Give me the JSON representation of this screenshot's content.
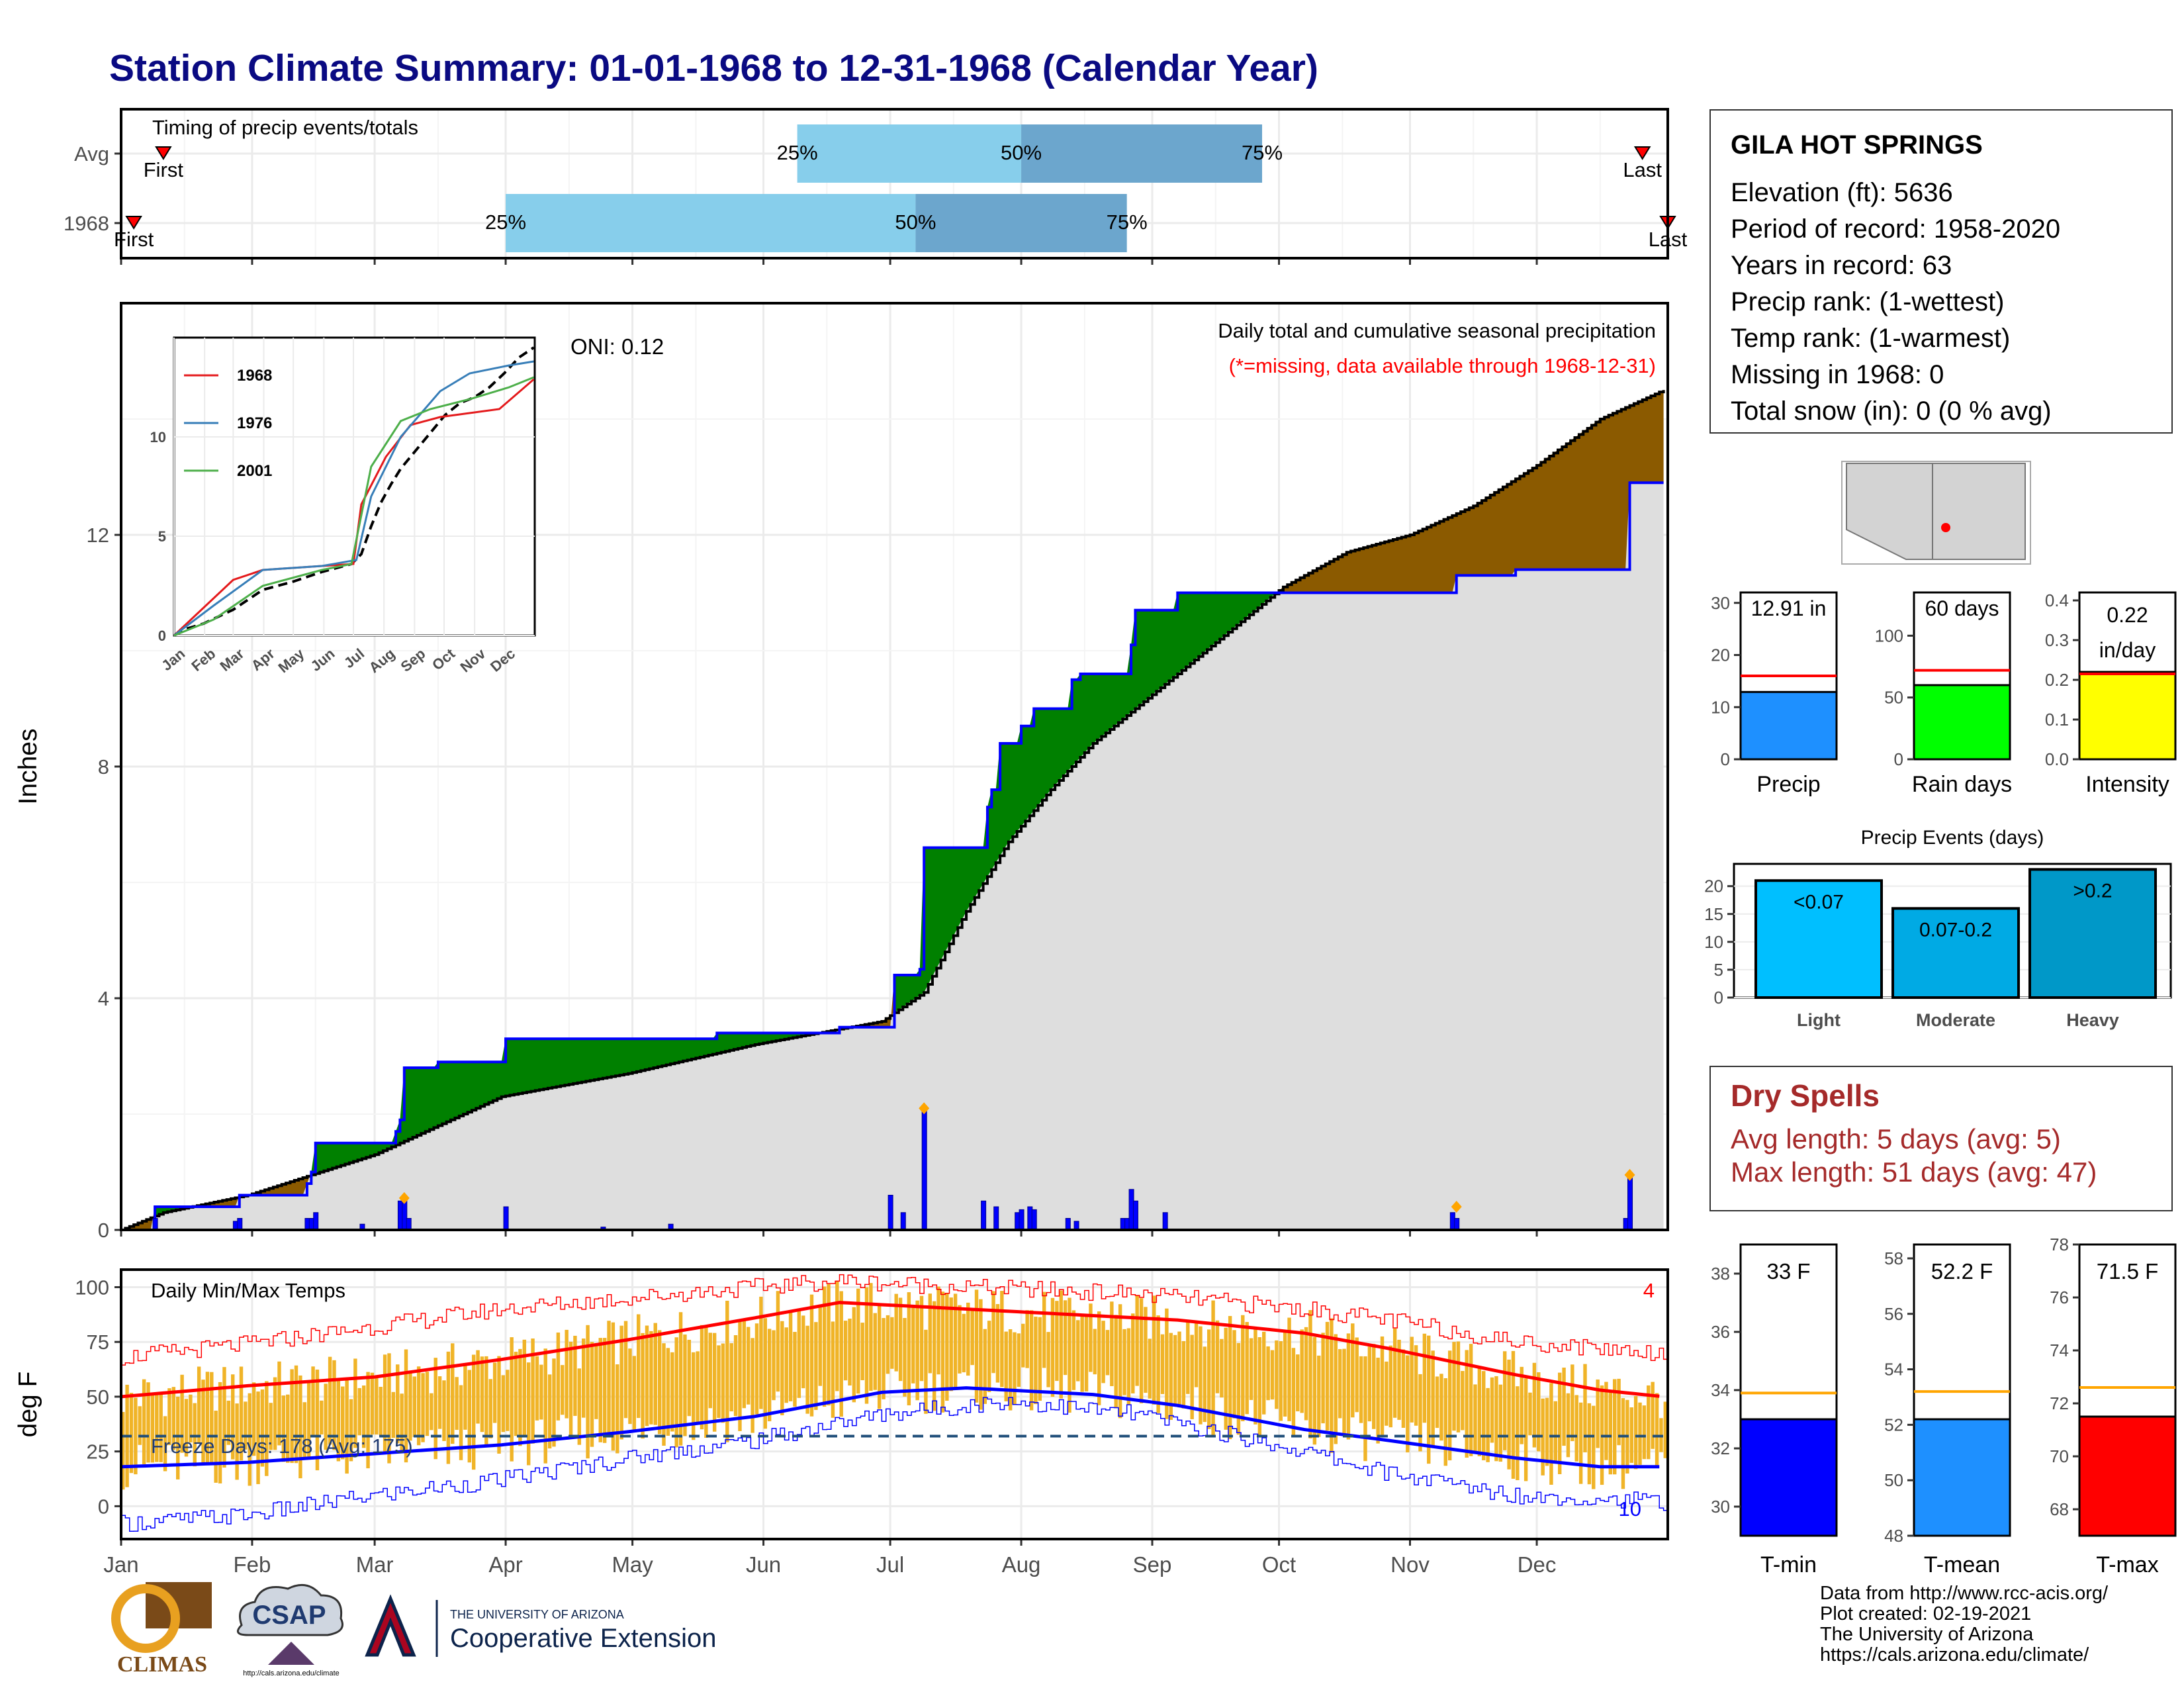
{
  "title": "Station Climate Summary: 01-01-1968 to 12-31-1968 (Calendar Year)",
  "station": {
    "name": "GILA HOT SPRINGS",
    "lines": [
      "Elevation (ft): 5636",
      "Period of record: 1958-2020",
      "Years in record: 63",
      "Precip rank:  (1-wettest)",
      "Temp rank:  (1-warmest)",
      "Missing in 1968: 0",
      "Total snow (in): 0 (0 % avg)"
    ]
  },
  "dry_spells": {
    "title": "Dry Spells",
    "avg": "Avg length: 5 days (avg: 5)",
    "max": "Max length: 51 days (avg: 47)"
  },
  "credits": [
    "Data from http://www.rcc-acis.org/",
    "Plot created: 02-19-2021",
    "The University of Arizona",
    "https://cals.arizona.edu/climate/"
  ],
  "logos": {
    "climas": "CLIMAS",
    "csap": "CSAP",
    "csap_url": "http://cals.arizona.edu/climate",
    "ua_header": "THE UNIVERSITY OF ARIZONA",
    "ua_name": "Cooperative Extension"
  },
  "colors": {
    "title": "#0a0a82",
    "above_avg": "#008000",
    "below_avg": "#8b5a00",
    "cum_line": "#0000ff",
    "bar_q1": "#87ceeb",
    "bar_q2": "#6ca6cd",
    "temp_bar": "#f0b428",
    "tmax": "#ff0000",
    "tmin": "#0000ff"
  },
  "chart_data": [
    {
      "id": "timing",
      "type": "bar",
      "title": "Timing of precip events/totals",
      "categories": [
        "Avg",
        "1968"
      ],
      "x_axis": "day of year",
      "rows": [
        {
          "name": "Avg",
          "first_day": 10,
          "q25_day": 160,
          "q50_day": 213,
          "q75_day": 270,
          "last_day": 360,
          "first_label": "First",
          "last_label": "Last"
        },
        {
          "name": "1968",
          "first_day": 3,
          "q25_day": 91,
          "q50_day": 188,
          "q75_day": 238,
          "last_day": 366,
          "first_label": "First",
          "last_label": "Last"
        }
      ],
      "quartile_labels": [
        "25%",
        "50%",
        "75%"
      ]
    },
    {
      "id": "precip",
      "type": "area",
      "title": "Daily total and cumulative seasonal precipitation",
      "subtitle": "(*=missing, data available through 1968-12-31)",
      "annotation": "ONI: 0.12",
      "ylabel": "Inches",
      "ylim": [
        0,
        16
      ],
      "yticks": [
        0,
        4,
        8,
        12
      ],
      "months": [
        "Jan",
        "Feb",
        "Mar",
        "Apr",
        "May",
        "Jun",
        "Jul",
        "Aug",
        "Sep",
        "Oct",
        "Nov",
        "Dec"
      ],
      "avg_cumulative": [
        [
          0,
          0
        ],
        [
          10,
          0.3
        ],
        [
          30,
          0.6
        ],
        [
          60,
          1.3
        ],
        [
          75,
          1.8
        ],
        [
          90,
          2.3
        ],
        [
          120,
          2.7
        ],
        [
          150,
          3.2
        ],
        [
          180,
          3.6
        ],
        [
          190,
          4.1
        ],
        [
          200,
          5.5
        ],
        [
          210,
          6.7
        ],
        [
          220,
          7.6
        ],
        [
          230,
          8.4
        ],
        [
          245,
          9.3
        ],
        [
          260,
          10.2
        ],
        [
          275,
          11.1
        ],
        [
          290,
          11.7
        ],
        [
          305,
          12.0
        ],
        [
          320,
          12.5
        ],
        [
          335,
          13.2
        ],
        [
          350,
          14.0
        ],
        [
          365,
          14.5
        ]
      ],
      "cumulative_1968": [
        [
          0,
          0
        ],
        [
          8,
          0.4
        ],
        [
          27,
          0.4
        ],
        [
          28,
          0.6
        ],
        [
          43,
          0.6
        ],
        [
          44,
          0.8
        ],
        [
          45,
          1.0
        ],
        [
          46,
          1.5
        ],
        [
          65,
          1.7
        ],
        [
          66,
          1.9
        ],
        [
          67,
          2.8
        ],
        [
          75,
          2.9
        ],
        [
          90,
          2.9
        ],
        [
          91,
          3.3
        ],
        [
          140,
          3.3
        ],
        [
          141,
          3.4
        ],
        [
          170,
          3.5
        ],
        [
          182,
          3.5
        ],
        [
          183,
          4.4
        ],
        [
          189,
          4.5
        ],
        [
          190,
          6.6
        ],
        [
          200,
          6.6
        ],
        [
          205,
          7.3
        ],
        [
          206,
          7.6
        ],
        [
          208,
          8.4
        ],
        [
          213,
          8.7
        ],
        [
          216,
          9.0
        ],
        [
          224,
          9.0
        ],
        [
          225,
          9.5
        ],
        [
          227,
          9.6
        ],
        [
          237,
          9.6
        ],
        [
          239,
          10.1
        ],
        [
          240,
          10.7
        ],
        [
          250,
          11.0
        ],
        [
          290,
          11.0
        ],
        [
          315,
          11.0
        ],
        [
          316,
          11.3
        ],
        [
          330,
          11.4
        ],
        [
          356,
          11.4
        ],
        [
          357,
          12.9
        ],
        [
          365,
          12.9
        ]
      ],
      "daily_1968": [
        [
          8,
          0.2
        ],
        [
          27,
          0.15
        ],
        [
          28,
          0.2
        ],
        [
          44,
          0.2
        ],
        [
          45,
          0.2
        ],
        [
          46,
          0.3
        ],
        [
          57,
          0.1
        ],
        [
          66,
          0.5
        ],
        [
          67,
          0.5
        ],
        [
          68,
          0.2
        ],
        [
          91,
          0.4
        ],
        [
          114,
          0.05
        ],
        [
          130,
          0.1
        ],
        [
          182,
          0.6
        ],
        [
          185,
          0.3
        ],
        [
          190,
          2.1
        ],
        [
          204,
          0.5
        ],
        [
          207,
          0.4
        ],
        [
          212,
          0.3
        ],
        [
          213,
          0.35
        ],
        [
          215,
          0.4
        ],
        [
          216,
          0.35
        ],
        [
          224,
          0.2
        ],
        [
          226,
          0.15
        ],
        [
          237,
          0.2
        ],
        [
          238,
          0.2
        ],
        [
          239,
          0.7
        ],
        [
          240,
          0.5
        ],
        [
          247,
          0.3
        ],
        [
          315,
          0.3
        ],
        [
          316,
          0.2
        ],
        [
          356,
          0.2
        ],
        [
          357,
          0.9
        ]
      ],
      "daily_max_markers": [
        [
          67,
          0.55
        ],
        [
          190,
          2.1
        ],
        [
          316,
          0.4
        ],
        [
          357,
          0.95
        ]
      ]
    },
    {
      "id": "inset",
      "type": "line",
      "series": [
        {
          "name": "1968",
          "color": "#e41a1c",
          "values": [
            [
              0,
              0
            ],
            [
              60,
              2.8
            ],
            [
              90,
              3.3
            ],
            [
              150,
              3.5
            ],
            [
              182,
              3.6
            ],
            [
              190,
              6.6
            ],
            [
              215,
              9.0
            ],
            [
              240,
              10.6
            ],
            [
              270,
              11.0
            ],
            [
              330,
              11.4
            ],
            [
              365,
              12.9
            ]
          ]
        },
        {
          "name": "1976",
          "color": "#377eb8",
          "values": [
            [
              0,
              0
            ],
            [
              40,
              1.5
            ],
            [
              90,
              3.3
            ],
            [
              150,
              3.5
            ],
            [
              185,
              3.8
            ],
            [
              200,
              7.0
            ],
            [
              230,
              10.0
            ],
            [
              270,
              12.3
            ],
            [
              300,
              13.2
            ],
            [
              340,
              13.6
            ],
            [
              365,
              13.8
            ]
          ]
        },
        {
          "name": "2001",
          "color": "#4daf4a",
          "values": [
            [
              0,
              0
            ],
            [
              40,
              0.8
            ],
            [
              90,
              2.5
            ],
            [
              150,
              3.3
            ],
            [
              180,
              3.6
            ],
            [
              200,
              8.5
            ],
            [
              230,
              10.8
            ],
            [
              260,
              11.4
            ],
            [
              300,
              11.9
            ],
            [
              340,
              12.5
            ],
            [
              365,
              13.0
            ]
          ]
        }
      ],
      "avg_dashed": true,
      "ylim": [
        0,
        15
      ],
      "yticks": [
        0,
        5,
        10
      ],
      "months": [
        "Jan",
        "Feb",
        "Mar",
        "Apr",
        "May",
        "Jun",
        "Jul",
        "Aug",
        "Sep",
        "Oct",
        "Nov",
        "Dec"
      ]
    },
    {
      "id": "temps",
      "type": "bar",
      "title": "Daily Min/Max Temps",
      "ylabel": "deg F",
      "ylim": [
        -15,
        108
      ],
      "yticks": [
        0,
        25,
        50,
        75,
        100
      ],
      "freeze_label": "Freeze Days: 178 (Avg: 175)",
      "freeze_line": 32,
      "corner_top": "4",
      "corner_bottom": "10",
      "months": [
        "Jan",
        "Feb",
        "Mar",
        "Apr",
        "May",
        "Jun",
        "Jul",
        "Aug",
        "Sep",
        "Oct",
        "Nov",
        "Dec"
      ],
      "avg_tmax": [
        [
          0,
          50
        ],
        [
          30,
          55
        ],
        [
          60,
          59
        ],
        [
          90,
          67
        ],
        [
          120,
          76
        ],
        [
          150,
          86
        ],
        [
          170,
          93
        ],
        [
          190,
          91
        ],
        [
          220,
          88
        ],
        [
          250,
          85
        ],
        [
          280,
          79
        ],
        [
          300,
          72
        ],
        [
          330,
          60
        ],
        [
          350,
          53
        ],
        [
          365,
          50
        ]
      ],
      "avg_tmin": [
        [
          0,
          18
        ],
        [
          30,
          20
        ],
        [
          60,
          24
        ],
        [
          90,
          28
        ],
        [
          120,
          34
        ],
        [
          150,
          41
        ],
        [
          180,
          52
        ],
        [
          200,
          54
        ],
        [
          230,
          51
        ],
        [
          250,
          46
        ],
        [
          280,
          35
        ],
        [
          300,
          30
        ],
        [
          330,
          22
        ],
        [
          350,
          18
        ],
        [
          365,
          18
        ]
      ],
      "rec_max": [
        [
          0,
          68
        ],
        [
          30,
          74
        ],
        [
          60,
          82
        ],
        [
          90,
          90
        ],
        [
          120,
          95
        ],
        [
          150,
          100
        ],
        [
          170,
          103
        ],
        [
          200,
          100
        ],
        [
          240,
          97
        ],
        [
          280,
          90
        ],
        [
          300,
          85
        ],
        [
          330,
          75
        ],
        [
          365,
          70
        ]
      ],
      "rec_min": [
        [
          0,
          -8
        ],
        [
          30,
          -4
        ],
        [
          60,
          5
        ],
        [
          90,
          12
        ],
        [
          120,
          22
        ],
        [
          150,
          30
        ],
        [
          180,
          42
        ],
        [
          210,
          48
        ],
        [
          240,
          42
        ],
        [
          280,
          25
        ],
        [
          300,
          15
        ],
        [
          330,
          5
        ],
        [
          365,
          2
        ]
      ]
    },
    {
      "id": "summary_precip",
      "type": "bar",
      "panels": [
        {
          "name": "Precip",
          "value": 12.91,
          "label": "12.91 in",
          "avg": 16,
          "ylim": [
            0,
            32
          ],
          "yticks": [
            0,
            10,
            20,
            30
          ],
          "color": "#1e90ff"
        },
        {
          "name": "Rain days",
          "value": 60,
          "label": "60 days",
          "avg": 72,
          "ylim": [
            0,
            135
          ],
          "yticks": [
            0,
            50,
            100
          ],
          "color": "#00ff00"
        },
        {
          "name": "Intensity",
          "value": 0.22,
          "label": "0.22 in/day",
          "avg": 0.215,
          "ylim": [
            0,
            0.42
          ],
          "yticks": [
            0.0,
            0.1,
            0.2,
            0.3,
            0.4
          ],
          "color": "#ffff00"
        }
      ]
    },
    {
      "id": "precip_events",
      "type": "bar",
      "title": "Precip Events (days)",
      "categories": [
        "Light",
        "Moderate",
        "Heavy"
      ],
      "labels": [
        "<0.07",
        "0.07-0.2",
        ">0.2"
      ],
      "values": [
        21,
        16,
        23
      ],
      "ylim": [
        0,
        24
      ],
      "yticks": [
        0,
        5,
        10,
        15,
        20
      ],
      "colors": [
        "#00bfff",
        "#00aae4",
        "#0098c8"
      ]
    },
    {
      "id": "summary_temp",
      "type": "bar",
      "panels": [
        {
          "name": "T-min",
          "value": 33.0,
          "label": "33 F",
          "avg": 33.9,
          "ylim": [
            29,
            39
          ],
          "yticks": [
            30,
            32,
            34,
            36,
            38
          ],
          "color": "#0000ff"
        },
        {
          "name": "T-mean",
          "value": 52.2,
          "label": "52.2 F",
          "avg": 53.2,
          "ylim": [
            48,
            58.5
          ],
          "yticks": [
            48,
            50,
            52,
            54,
            56,
            58
          ],
          "color": "#1e90ff"
        },
        {
          "name": "T-max",
          "value": 71.5,
          "label": "71.5 F",
          "avg": 72.6,
          "ylim": [
            67,
            78
          ],
          "yticks": [
            68,
            70,
            72,
            74,
            76,
            78
          ],
          "color": "#ff0000"
        }
      ]
    }
  ]
}
